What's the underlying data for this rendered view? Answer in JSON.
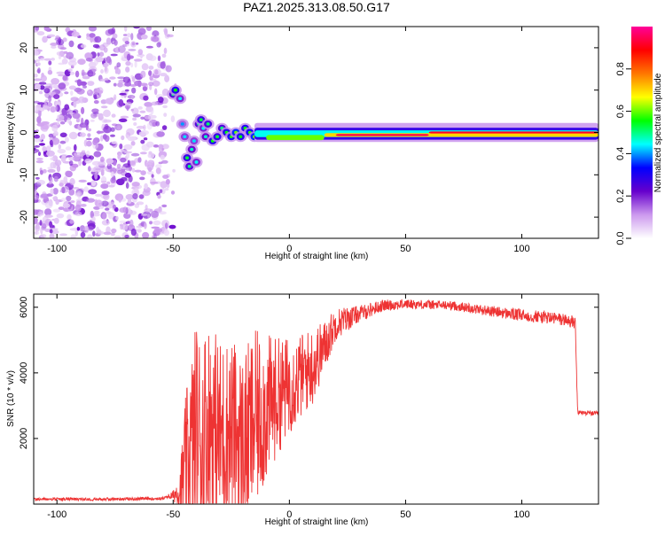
{
  "chart_data": [
    {
      "type": "heatmap",
      "title": "PAZ1.2025.313.08.50.G17",
      "xlabel": "Height of straight line (km)",
      "ylabel": "Frequency (Hz)",
      "xlim": [
        -110,
        133
      ],
      "ylim": [
        -25,
        25
      ],
      "x_ticks": [
        -100,
        -50,
        0,
        50,
        100
      ],
      "x_tick_labels": [
        "-100",
        "-50",
        "0",
        "50",
        "100"
      ],
      "y_ticks": [
        -20,
        -10,
        0,
        10,
        20
      ],
      "y_tick_labels": [
        "-20",
        "-10",
        "0",
        "10",
        "20"
      ],
      "colorbar": {
        "label": "Normalized spectral amplitude",
        "range": [
          0,
          1
        ],
        "ticks": [
          0.0,
          0.2,
          0.4,
          0.6,
          0.8
        ],
        "tick_labels": [
          "0.0",
          "0.2",
          "0.4",
          "0.6",
          "0.8"
        ],
        "colors": [
          "#ffffff",
          "#cc99ee",
          "#6600cc",
          "#0000ff",
          "#00ffff",
          "#00ff00",
          "#ffff00",
          "#ff7700",
          "#ff0000",
          "#ff0099"
        ]
      },
      "features": {
        "noise_region_x": [
          -110,
          -52
        ],
        "transition_region_x": [
          -52,
          -15
        ],
        "signal_line_x": [
          -15,
          133
        ],
        "signal_frequency_hz": [
          0,
          -2,
          -1,
          0,
          0.5,
          0
        ]
      }
    },
    {
      "type": "line",
      "xlabel": "Height of straight line (km)",
      "ylabel": "SNR (10 * v/v)",
      "xlim": [
        -110,
        133
      ],
      "ylim": [
        0,
        6400
      ],
      "x_ticks": [
        -100,
        -50,
        0,
        50,
        100
      ],
      "x_tick_labels": [
        "-100",
        "-50",
        "0",
        "50",
        "100"
      ],
      "y_ticks": [
        2000,
        4000,
        6000
      ],
      "y_tick_labels": [
        "2000",
        "4000",
        "6000"
      ],
      "color": "#ee3333",
      "series": [
        {
          "name": "SNR",
          "x": [
            -110,
            -80,
            -55,
            -50,
            -47,
            -45,
            -42,
            -40,
            -38,
            -35,
            -30,
            -25,
            -20,
            -15,
            -10,
            -5,
            0,
            5,
            10,
            15,
            20,
            30,
            40,
            50,
            60,
            70,
            80,
            90,
            100,
            110,
            120,
            123,
            124,
            133
          ],
          "values": [
            150,
            150,
            170,
            260,
            450,
            900,
            1700,
            2300,
            1800,
            2500,
            2100,
            2300,
            1800,
            2500,
            2900,
            3300,
            3600,
            3900,
            4200,
            4800,
            5500,
            5800,
            6050,
            6100,
            6080,
            6050,
            5950,
            5850,
            5750,
            5700,
            5600,
            5500,
            2800,
            2750
          ],
          "spike_amplitude": [
            0,
            0,
            0,
            150,
            700,
            2200,
            3000,
            3400,
            3500,
            3200,
            3000,
            2800,
            2800,
            2800,
            2300,
            1800,
            1500,
            1300,
            1200,
            800,
            500,
            250,
            180,
            150,
            140,
            140,
            150,
            170,
            190,
            200,
            200,
            200,
            80,
            80
          ]
        }
      ]
    }
  ]
}
